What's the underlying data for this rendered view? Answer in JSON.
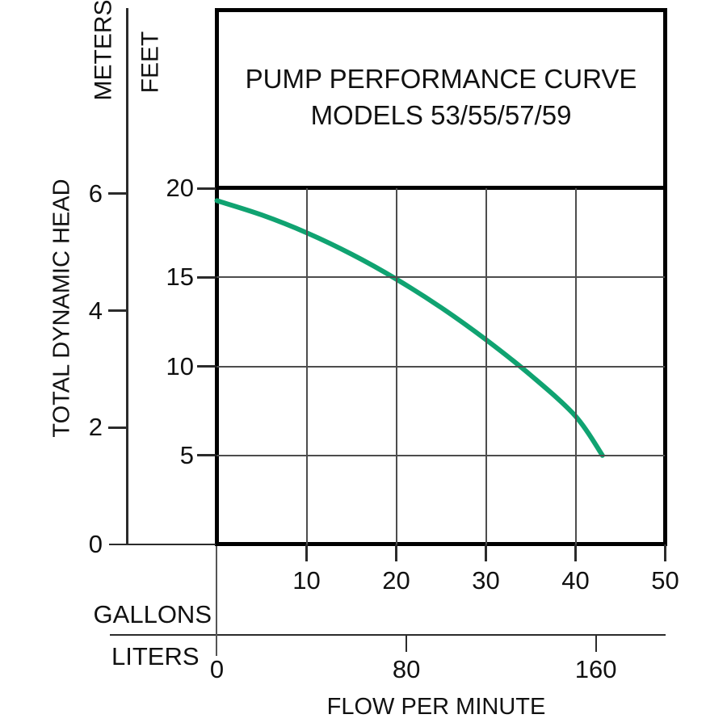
{
  "chart_data": {
    "type": "line",
    "title": "PUMP PERFORMANCE CURVE",
    "subtitle": "MODELS 53/55/57/59",
    "xlabel": "FLOW PER MINUTE",
    "ylabel": "TOTAL DYNAMIC HEAD",
    "x_units": [
      {
        "name": "GALLONS",
        "ticks": [
          10,
          20,
          30,
          40,
          50
        ],
        "range": [
          0,
          50
        ]
      },
      {
        "name": "LITERS",
        "ticks": [
          0,
          80,
          160
        ],
        "range": [
          0,
          189
        ]
      }
    ],
    "y_units": [
      {
        "name": "METERS",
        "ticks": [
          6,
          4,
          2,
          0
        ],
        "range": [
          0,
          6.1
        ]
      },
      {
        "name": "FEET",
        "ticks": [
          20,
          15,
          10,
          5
        ],
        "range": [
          0,
          20
        ]
      }
    ],
    "grid": {
      "vertical_gallons": [
        10,
        20,
        30,
        40
      ],
      "horizontal_feet": [
        15,
        10,
        5
      ]
    },
    "series": [
      {
        "name": "MODELS 53/55/57/59 head-capacity curve",
        "color": "#10a371",
        "points_gpm_feet": [
          [
            0,
            19.3
          ],
          [
            5,
            18.5
          ],
          [
            10,
            17.5
          ],
          [
            15,
            16.3
          ],
          [
            20,
            14.9
          ],
          [
            25,
            13.3
          ],
          [
            30,
            11.5
          ],
          [
            35,
            9.5
          ],
          [
            40,
            7.2
          ],
          [
            43,
            5.0
          ]
        ]
      }
    ],
    "legend": "none",
    "colors": {
      "frame": "#000000",
      "grid": "#4d4d4d",
      "text": "#111111"
    }
  }
}
